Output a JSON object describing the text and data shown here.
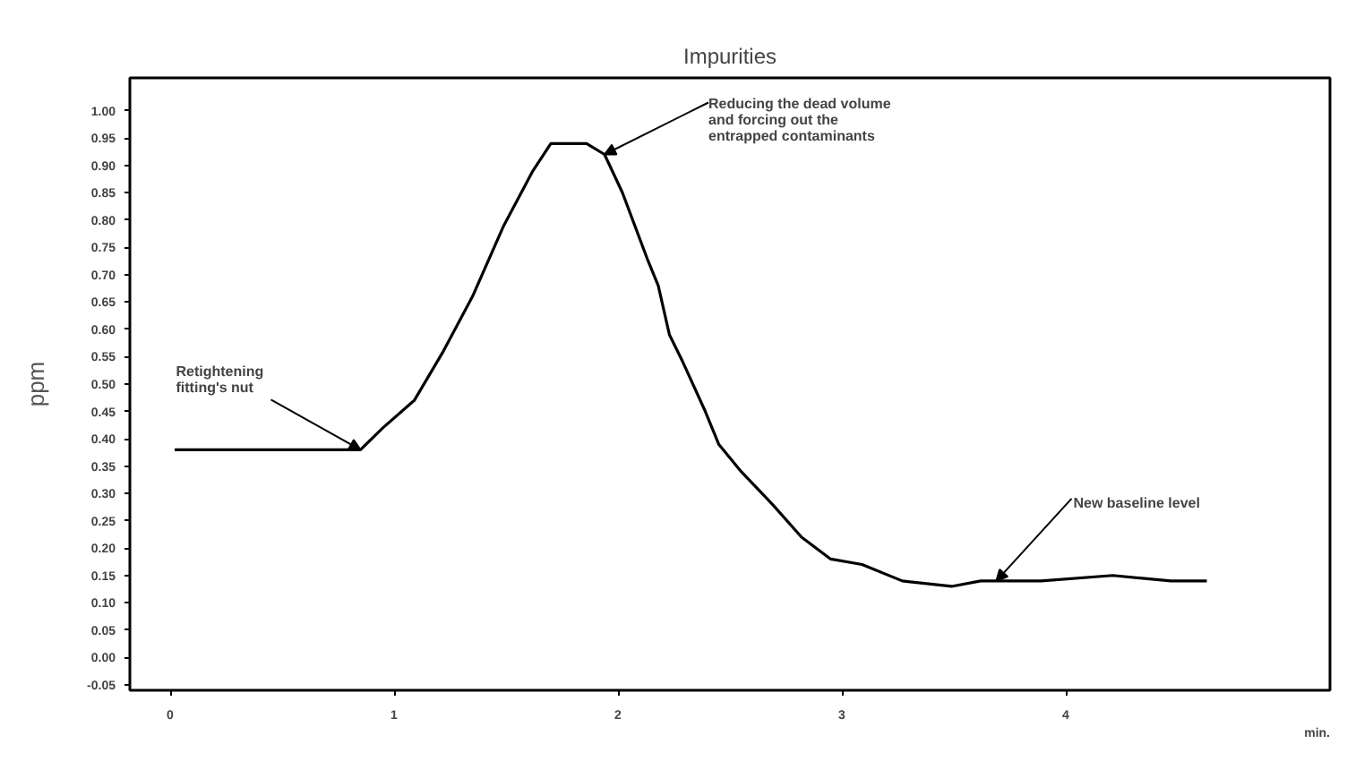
{
  "chart_data": {
    "type": "line",
    "title": "Impurities",
    "xlabel": "min.",
    "ylabel": "ppm",
    "x": [
      0.02,
      0.85,
      0.95,
      1.09,
      1.22,
      1.35,
      1.49,
      1.62,
      1.7,
      1.86,
      1.94,
      2.02,
      2.13,
      2.18,
      2.23,
      2.29,
      2.39,
      2.45,
      2.55,
      2.69,
      2.82,
      2.95,
      3.09,
      3.27,
      3.49,
      3.62,
      3.89,
      4.21,
      4.47,
      4.63
    ],
    "series": [
      {
        "color": "#000000",
        "values": [
          0.38,
          0.38,
          0.42,
          0.47,
          0.56,
          0.66,
          0.79,
          0.89,
          0.94,
          0.94,
          0.92,
          0.85,
          0.73,
          0.68,
          0.59,
          0.54,
          0.45,
          0.39,
          0.34,
          0.28,
          0.22,
          0.18,
          0.17,
          0.14,
          0.13,
          0.14,
          0.14,
          0.15,
          0.14,
          0.14
        ]
      }
    ],
    "xlim": [
      -0.18,
      5.18
    ],
    "xticks": [
      0,
      1,
      2,
      3,
      4
    ],
    "ylim": [
      -0.06,
      1.06
    ],
    "yticks": [
      {
        "value": 1.0,
        "label": "1.00"
      },
      {
        "value": 0.95,
        "label": "0.95"
      },
      {
        "value": 0.9,
        "label": "0.90"
      },
      {
        "value": 0.85,
        "label": "0.85"
      },
      {
        "value": 0.8,
        "label": "0.80"
      },
      {
        "value": 0.75,
        "label": "0.75"
      },
      {
        "value": 0.7,
        "label": "0.70"
      },
      {
        "value": 0.65,
        "label": "0.65"
      },
      {
        "value": 0.6,
        "label": "0.60"
      },
      {
        "value": 0.55,
        "label": "0.55"
      },
      {
        "value": 0.5,
        "label": "0.50"
      },
      {
        "value": 0.45,
        "label": "0.45"
      },
      {
        "value": 0.4,
        "label": "0.40"
      },
      {
        "value": 0.35,
        "label": "0.35"
      },
      {
        "value": 0.3,
        "label": "0.30"
      },
      {
        "value": 0.25,
        "label": "0.25"
      },
      {
        "value": 0.2,
        "label": "0.20"
      },
      {
        "value": 0.15,
        "label": "0.15"
      },
      {
        "value": 0.1,
        "label": "0.10"
      },
      {
        "value": 0.05,
        "label": "0.05"
      },
      {
        "value": 0.0,
        "label": "0.00"
      },
      {
        "value": -0.05,
        "label": "-0.05"
      }
    ],
    "annotations": [
      {
        "text": "Retightening\nfitting's nut",
        "x": 0.85,
        "y": 0.38
      },
      {
        "text": "Reducing the dead volume\nand forcing out the\nentrapped contaminants",
        "x": 1.94,
        "y": 0.92
      },
      {
        "text": "New baseline level",
        "x": 3.69,
        "y": 0.14
      }
    ],
    "grid": false,
    "marker": "none",
    "line_style": "solid"
  }
}
